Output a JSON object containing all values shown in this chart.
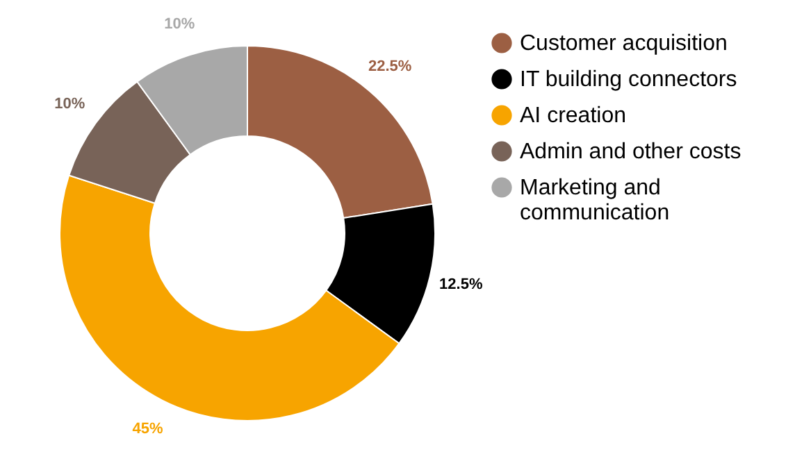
{
  "chart_data": {
    "type": "donut",
    "categories": [
      "Customer acquisition",
      "IT building connectors",
      "AI creation",
      "Admin and other costs",
      "Marketing and communication"
    ],
    "values": [
      22.5,
      12.5,
      45,
      10,
      10
    ],
    "colors": [
      "#9c5f43",
      "#000000",
      "#f7a400",
      "#786358",
      "#a8a8a8"
    ],
    "value_labels": [
      "22.5%",
      "12.5%",
      "45%",
      "10%",
      "10%"
    ],
    "legend": "top right"
  }
}
